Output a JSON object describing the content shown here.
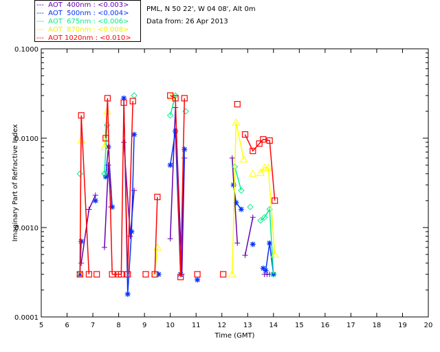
{
  "chart_data": {
    "type": "scatter",
    "title": "",
    "xlabel": "Time (GMT)",
    "ylabel": "Imaginary Part of Refractive Index",
    "xlim": [
      5,
      20
    ],
    "ylim": [
      0.0001,
      0.1
    ],
    "yscale": "log",
    "xticks": [
      "5",
      "6",
      "7",
      "8",
      "9",
      "10",
      "11",
      "12",
      "13",
      "14",
      "15",
      "16",
      "17",
      "18",
      "19",
      "20"
    ],
    "yticks": [
      "0.0001",
      "0.0010",
      "0.0100",
      "0.1000"
    ],
    "info": [
      "PML, N 50 22', W 04 08', Alt 0m",
      "Data from: 26 Apr 2013"
    ],
    "series": [
      {
        "name": "AOT  400nm : <0.003>",
        "label_text": "---  AOT  400nm : <0.003>",
        "color": "#6600b0",
        "marker": "plus",
        "x": [
          6.55,
          6.85,
          7.1,
          7.45,
          7.6,
          7.7,
          8.2,
          8.45,
          8.6,
          10.0,
          10.2,
          10.45,
          10.55,
          12.4,
          12.6,
          12.9,
          13.2,
          13.65,
          13.75,
          13.85
        ],
        "y": [
          0.0004,
          0.0016,
          0.0023,
          0.0006,
          0.005,
          0.0017,
          0.009,
          0.0008,
          0.0026,
          0.00075,
          0.022,
          0.0003,
          0.006,
          0.006,
          0.00067,
          0.00049,
          0.0013,
          0.0003,
          0.0003,
          0.0003
        ]
      },
      {
        "name": "AOT  500nm : <0.004>",
        "label_text": "---  AOT  500nm : <0.004>",
        "color": "#0030ff",
        "marker": "asterisk",
        "x": [
          6.5,
          6.55,
          7.1,
          7.5,
          7.6,
          7.75,
          8.2,
          8.35,
          8.5,
          8.6,
          9.55,
          10.0,
          10.2,
          10.4,
          10.55,
          11.05,
          12.45,
          12.55,
          12.75,
          13.2,
          13.6,
          13.7,
          13.85,
          14.0
        ],
        "y": [
          0.0003,
          0.0007,
          0.002,
          0.0037,
          0.008,
          0.0017,
          0.028,
          0.00018,
          0.0009,
          0.011,
          0.0003,
          0.005,
          0.012,
          0.0003,
          0.0075,
          0.00026,
          0.003,
          0.0019,
          0.0016,
          0.00065,
          0.00035,
          0.00033,
          0.00067,
          0.0003
        ]
      },
      {
        "name": "AOT  675nm : <0.006>",
        "label_text": "---  AOT  675nm : <0.006>",
        "color": "#00ee88",
        "marker": "diamond",
        "x": [
          6.5,
          7.45,
          7.55,
          8.6,
          10.0,
          10.2,
          10.6,
          12.5,
          12.75,
          13.1,
          13.5,
          13.65,
          13.85,
          14.0
        ],
        "y": [
          0.004,
          0.004,
          0.014,
          0.03,
          0.018,
          0.03,
          0.02,
          0.0048,
          0.0026,
          0.0017,
          0.0012,
          0.0013,
          0.0016,
          0.0003
        ]
      },
      {
        "name": "AOT  870nm : <0.008>",
        "label_text": "---  AOT  870nm : <0.008>",
        "color": "#ffff00",
        "marker": "triangle",
        "x": [
          6.5,
          6.55,
          7.45,
          7.55,
          9.4,
          9.5,
          10.05,
          12.4,
          12.55,
          12.85,
          13.2,
          13.5,
          13.65,
          13.8,
          14.05
        ],
        "y": [
          0.0003,
          0.0095,
          0.008,
          0.02,
          0.0003,
          0.0006,
          0.029,
          0.0003,
          0.015,
          0.0058,
          0.004,
          0.0041,
          0.0047,
          0.0047,
          0.0005
        ]
      },
      {
        "name": "AOT 1020nm : <0.010>",
        "label_text": "---  AOT 1020nm : <0.010>",
        "color": "#ff0000",
        "marker": "square",
        "x": [
          6.5,
          6.55,
          6.85,
          7.15,
          7.5,
          7.57,
          7.75,
          8.0,
          8.1,
          8.2,
          8.35,
          8.55,
          9.05,
          9.4,
          9.5,
          10.0,
          10.2,
          10.4,
          10.55,
          11.05,
          12.05,
          12.6,
          12.9,
          13.2,
          13.45,
          13.6,
          13.85,
          14.05
        ],
        "y": [
          0.0003,
          0.018,
          0.0003,
          0.0003,
          0.01,
          0.028,
          0.0003,
          0.0003,
          0.0003,
          0.025,
          0.0003,
          0.026,
          0.0003,
          0.0003,
          0.0022,
          0.03,
          0.028,
          0.00028,
          0.028,
          0.0003,
          0.0003,
          0.024,
          0.011,
          0.0072,
          0.0087,
          0.0097,
          0.0094,
          0.002
        ]
      }
    ]
  }
}
